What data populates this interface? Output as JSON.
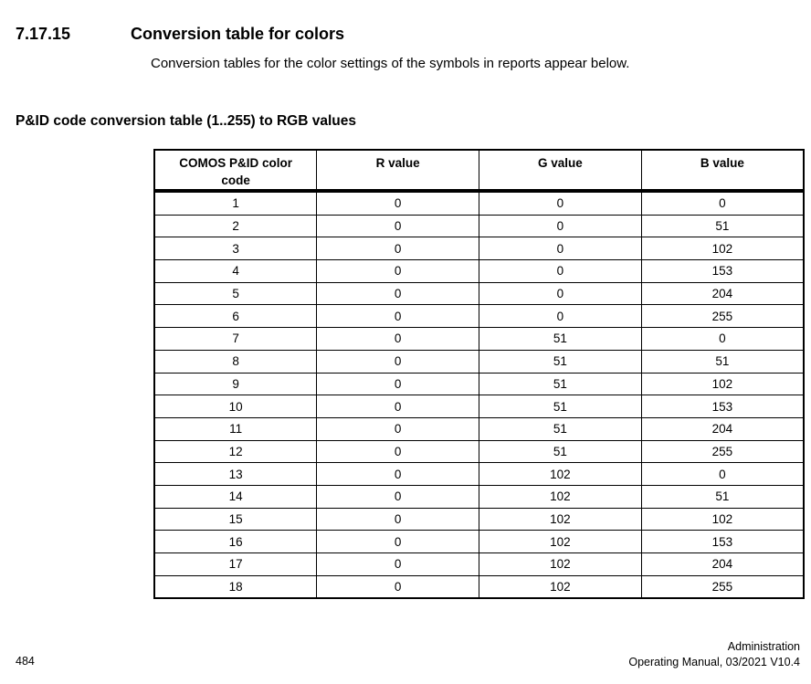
{
  "page": {
    "section_number": "7.17.15",
    "section_title": "Conversion table for colors",
    "intro": "Conversion tables for the color settings of the symbols in reports appear below.",
    "subheading": "P&ID code conversion table (1..255) to RGB values"
  },
  "table": {
    "headers": [
      "COMOS P&ID color code",
      "R value",
      "G value",
      "B value"
    ],
    "rows": [
      [
        1,
        0,
        0,
        0
      ],
      [
        2,
        0,
        0,
        51
      ],
      [
        3,
        0,
        0,
        102
      ],
      [
        4,
        0,
        0,
        153
      ],
      [
        5,
        0,
        0,
        204
      ],
      [
        6,
        0,
        0,
        255
      ],
      [
        7,
        0,
        51,
        0
      ],
      [
        8,
        0,
        51,
        51
      ],
      [
        9,
        0,
        51,
        102
      ],
      [
        10,
        0,
        51,
        153
      ],
      [
        11,
        0,
        51,
        204
      ],
      [
        12,
        0,
        51,
        255
      ],
      [
        13,
        0,
        102,
        0
      ],
      [
        14,
        0,
        102,
        51
      ],
      [
        15,
        0,
        102,
        102
      ],
      [
        16,
        0,
        102,
        153
      ],
      [
        17,
        0,
        102,
        204
      ],
      [
        18,
        0,
        102,
        255
      ]
    ]
  },
  "footer": {
    "page_number": "484",
    "doc_name": "Administration",
    "doc_info": "Operating Manual, 03/2021 V10.4"
  },
  "colors": {
    "text": "#000000",
    "border": "#000000",
    "background": "#ffffff"
  }
}
